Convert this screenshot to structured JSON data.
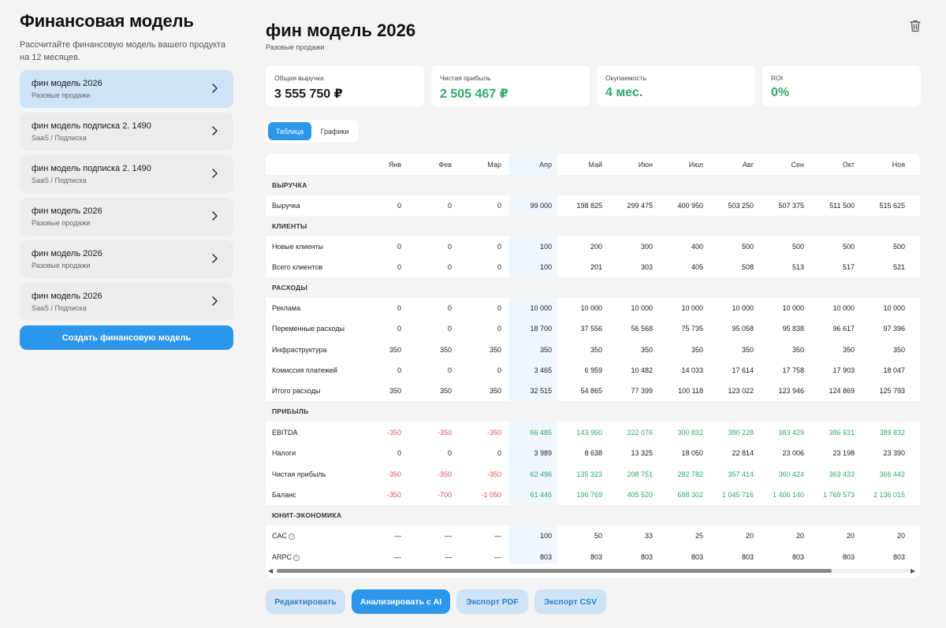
{
  "sidebar": {
    "title": "Финансовая модель",
    "subtitle": "Рассчитайте финансовую модель вашего продукта на 12 месяцев.",
    "items": [
      {
        "name": "фин модель 2026",
        "type": "Разовые продажи",
        "active": true
      },
      {
        "name": "фин модель подписка 2. 1490",
        "type": "SaaS / Подписка",
        "active": false
      },
      {
        "name": "фин модель подписка 2. 1490",
        "type": "SaaS / Подписка",
        "active": false
      },
      {
        "name": "фин модель 2026",
        "type": "Разовые продажи",
        "active": false
      },
      {
        "name": "фин модель 2026",
        "type": "Разовые продажи",
        "active": false
      },
      {
        "name": "фин модель 2026",
        "type": "SaaS / Подписка",
        "active": false
      }
    ],
    "create_label": "Создать финансовую модель"
  },
  "main": {
    "title": "фин модель 2026",
    "subtitle": "Разовые продажи",
    "kpis": [
      {
        "label": "Общая выручка",
        "value": "3 555 750 ₽",
        "green": false
      },
      {
        "label": "Чистая прибыль",
        "value": "2 505 467 ₽",
        "green": true
      },
      {
        "label": "Окупаемость",
        "value": "4 мес.",
        "green": true
      },
      {
        "label": "ROI",
        "value": "0%",
        "green": true
      }
    ],
    "tabs": [
      {
        "label": "Таблица",
        "active": true
      },
      {
        "label": "Графики",
        "active": false
      }
    ],
    "actions": {
      "edit": "Редактировать",
      "analyze": "Анализировать с AI",
      "pdf": "Экспорт PDF",
      "csv": "Экспорт CSV"
    }
  },
  "table": {
    "months": [
      "Янв",
      "Фев",
      "Мар",
      "Апр",
      "Май",
      "Июн",
      "Июл",
      "Авг",
      "Сен",
      "Окт",
      "Ноя"
    ],
    "rows": [
      {
        "kind": "section",
        "label": "ВЫРУЧКА"
      },
      {
        "kind": "data",
        "label": "Выручка",
        "values": [
          "0",
          "0",
          "0",
          "99 000",
          "198 825",
          "299 475",
          "400 950",
          "503 250",
          "507 375",
          "511 500",
          "515 625"
        ]
      },
      {
        "kind": "section",
        "label": "КЛИЕНТЫ"
      },
      {
        "kind": "data",
        "label": "Новые клиенты",
        "values": [
          "0",
          "0",
          "0",
          "100",
          "200",
          "300",
          "400",
          "500",
          "500",
          "500",
          "500"
        ]
      },
      {
        "kind": "data",
        "label": "Всего клиентов",
        "values": [
          "0",
          "0",
          "0",
          "100",
          "201",
          "303",
          "405",
          "508",
          "513",
          "517",
          "521"
        ]
      },
      {
        "kind": "section",
        "label": "РАСХОДЫ"
      },
      {
        "kind": "data",
        "label": "Реклама",
        "values": [
          "0",
          "0",
          "0",
          "10 000",
          "10 000",
          "10 000",
          "10 000",
          "10 000",
          "10 000",
          "10 000",
          "10 000"
        ]
      },
      {
        "kind": "data",
        "label": "Переменные расходы",
        "values": [
          "0",
          "0",
          "0",
          "18 700",
          "37 556",
          "56 568",
          "75 735",
          "95 058",
          "95 838",
          "96 617",
          "97 396"
        ]
      },
      {
        "kind": "data",
        "label": "Инфраструктура",
        "values": [
          "350",
          "350",
          "350",
          "350",
          "350",
          "350",
          "350",
          "350",
          "350",
          "350",
          "350"
        ]
      },
      {
        "kind": "data",
        "label": "Комиссия платежей",
        "values": [
          "0",
          "0",
          "0",
          "3 465",
          "6 959",
          "10 482",
          "14 033",
          "17 614",
          "17 758",
          "17 903",
          "18 047"
        ]
      },
      {
        "kind": "data",
        "label": "Итого расходы",
        "values": [
          "350",
          "350",
          "350",
          "32 515",
          "54 865",
          "77 399",
          "100 118",
          "123 022",
          "123 946",
          "124 869",
          "125 793"
        ]
      },
      {
        "kind": "section",
        "label": "ПРИБЫЛЬ"
      },
      {
        "kind": "data",
        "label": "EBITDA",
        "colored": true,
        "values": [
          "-350",
          "-350",
          "-350",
          "66 485",
          "143 960",
          "222 076",
          "300 832",
          "380 228",
          "383 429",
          "386 631",
          "389 832"
        ]
      },
      {
        "kind": "data",
        "label": "Налоги",
        "values": [
          "0",
          "0",
          "0",
          "3 989",
          "8 638",
          "13 325",
          "18 050",
          "22 814",
          "23 006",
          "23 198",
          "23 390"
        ]
      },
      {
        "kind": "data",
        "label": "Чистая прибыль",
        "colored": true,
        "values": [
          "-350",
          "-350",
          "-350",
          "62 496",
          "135 323",
          "208 751",
          "282 782",
          "357 414",
          "360 424",
          "363 433",
          "366 442"
        ]
      },
      {
        "kind": "data",
        "label": "Баланс",
        "colored": true,
        "values": [
          "-350",
          "-700",
          "-1 050",
          "61 446",
          "196 769",
          "405 520",
          "688 302",
          "1 045 716",
          "1 406 140",
          "1 769 573",
          "2 136 015"
        ]
      },
      {
        "kind": "section",
        "label": "ЮНИТ-ЭКОНОМИКА"
      },
      {
        "kind": "data",
        "label": "CAC",
        "info": true,
        "values": [
          "—",
          "—",
          "—",
          "100",
          "50",
          "33",
          "25",
          "20",
          "20",
          "20",
          "20"
        ]
      },
      {
        "kind": "data",
        "label": "ARPC",
        "info": true,
        "values": [
          "—",
          "—",
          "—",
          "803",
          "803",
          "803",
          "803",
          "803",
          "803",
          "803",
          "803"
        ]
      }
    ]
  },
  "colors": {
    "accent": "#2b96ea",
    "positive": "#2eaa62",
    "negative": "#e05050",
    "active_item": "#cfe3f7"
  },
  "icons": {
    "chevron": "chevron-right-icon",
    "trash": "trash-icon",
    "info": "info-icon"
  }
}
